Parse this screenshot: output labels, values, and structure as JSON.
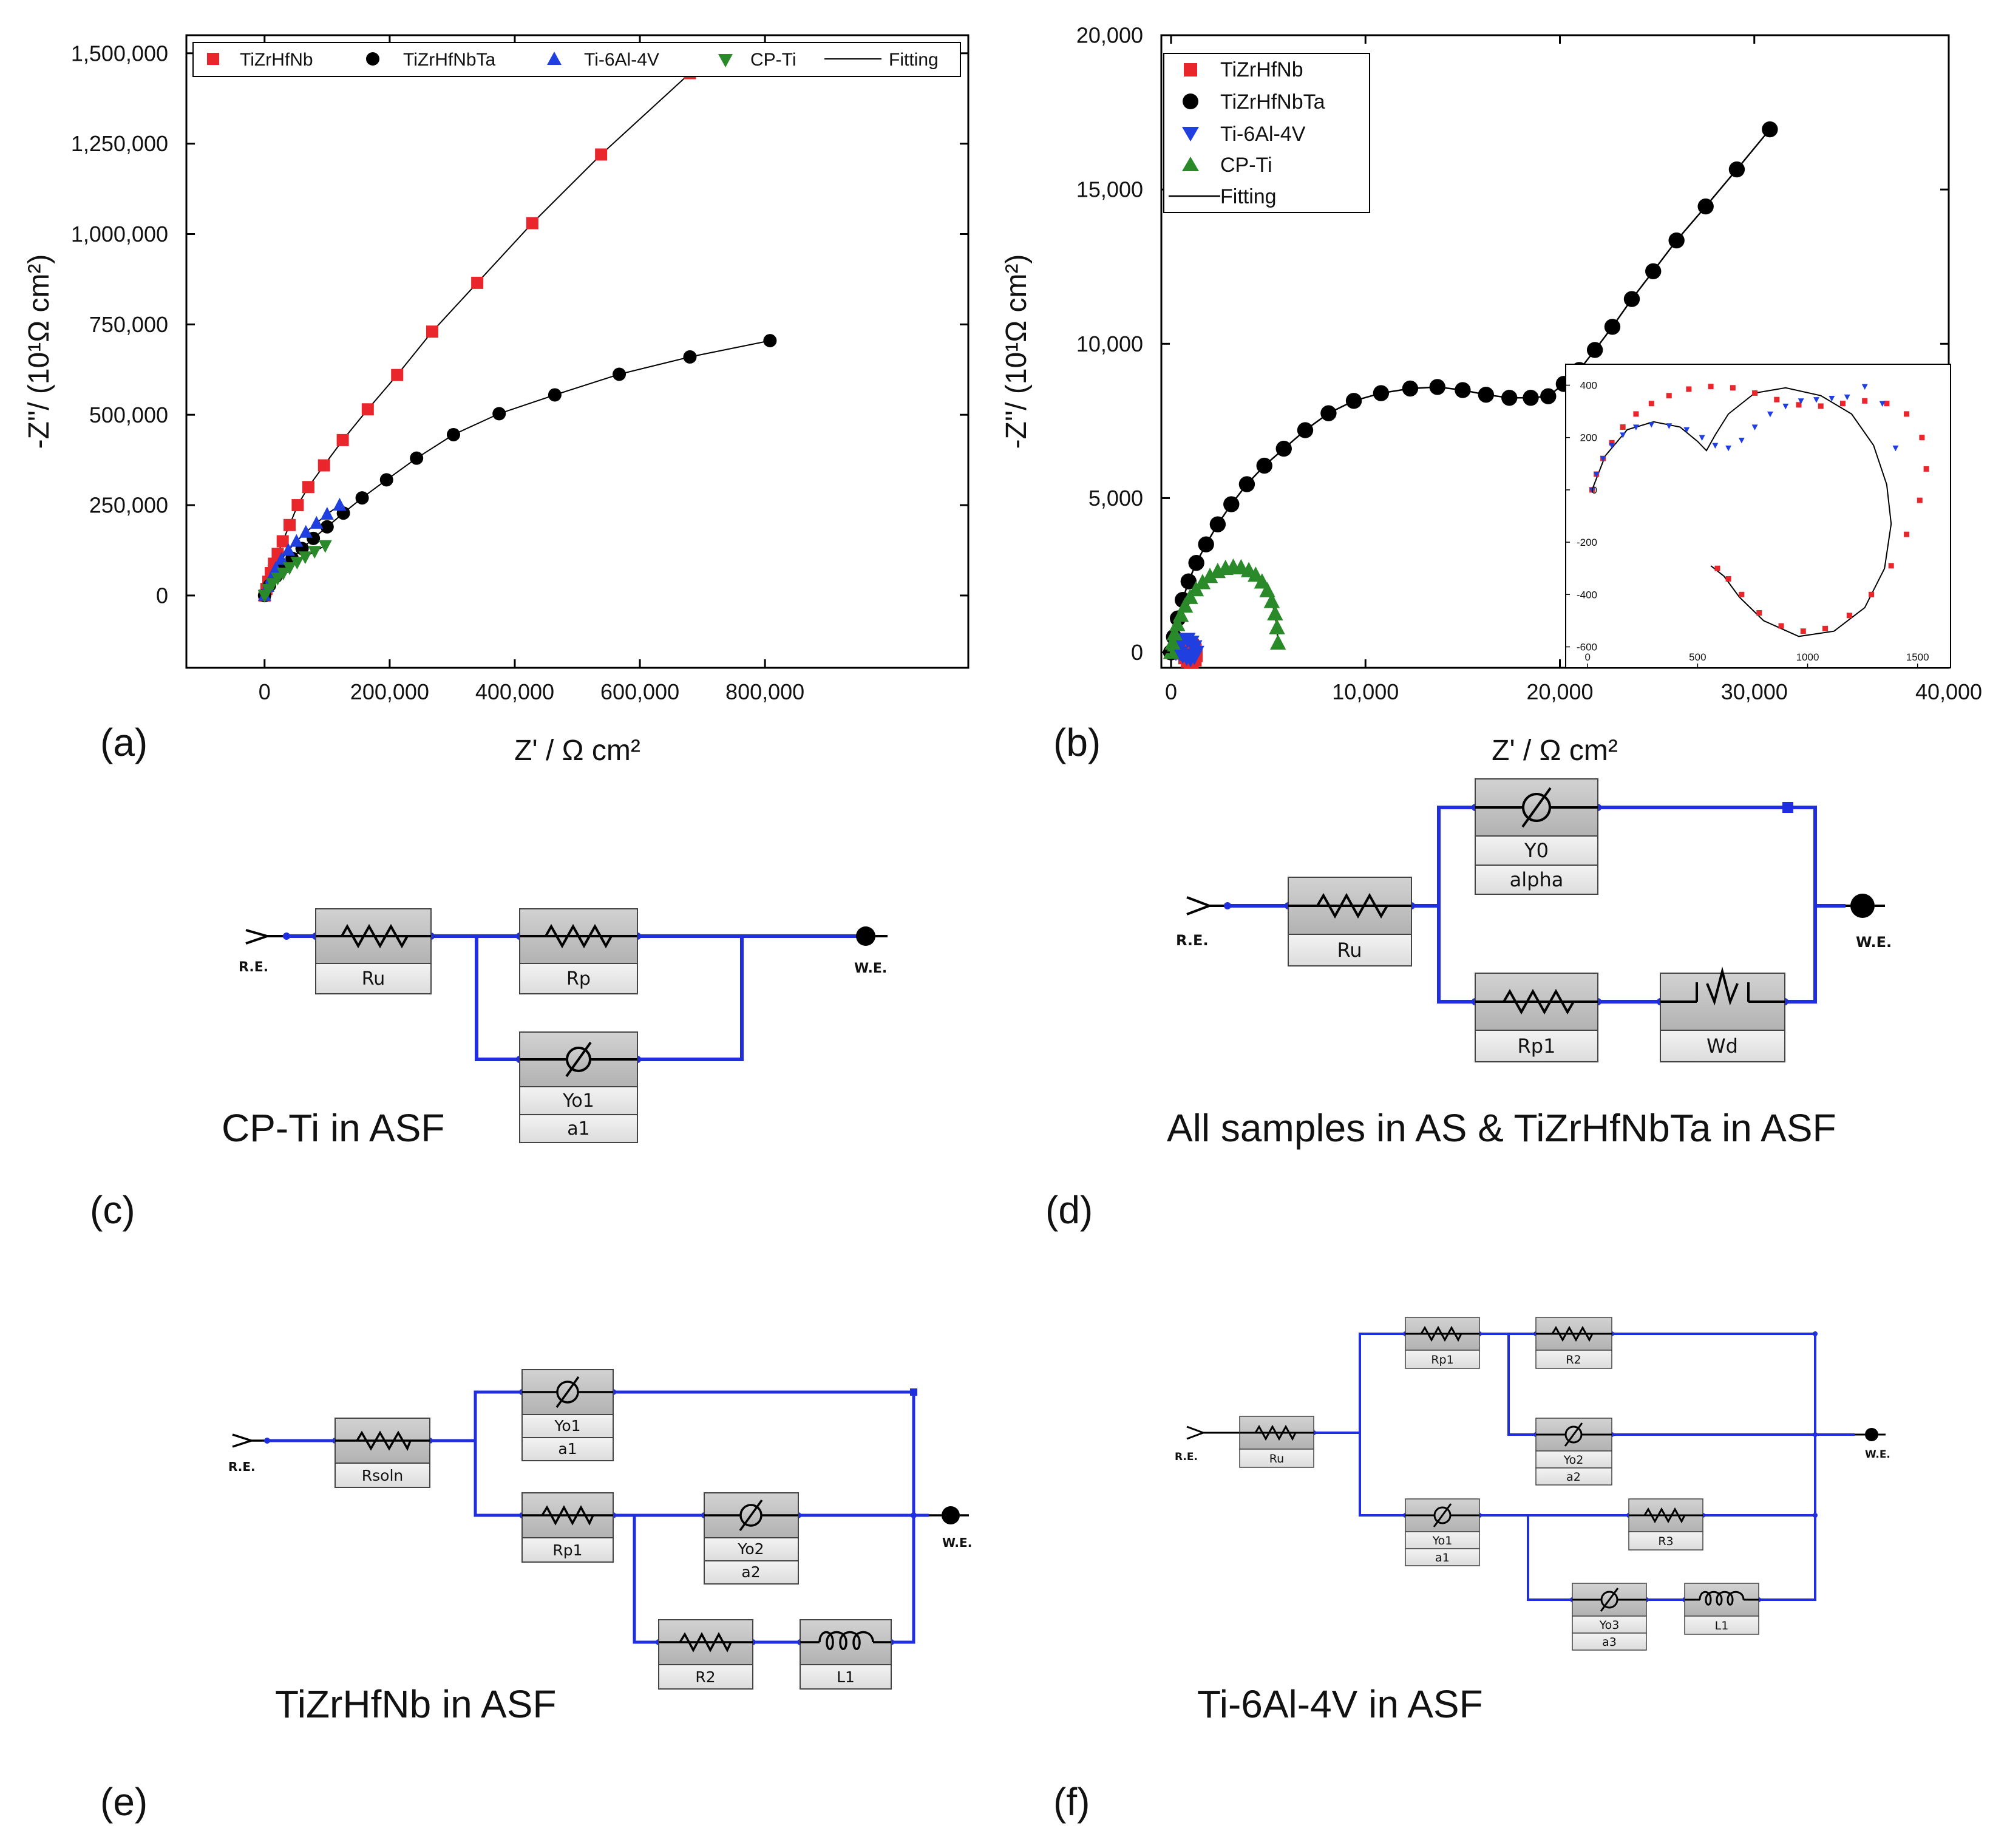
{
  "panel_labels": {
    "a": "(a)",
    "b": "(b)",
    "c": "(c)",
    "d": "(d)",
    "e": "(e)",
    "f": "(f)"
  },
  "chart_data": [
    {
      "type": "scatter",
      "panel": "(a)",
      "xlabel": "Z' / Ω cm²",
      "ylabel": "-Z''/ (10¹Ω cm²)",
      "xlim": [
        -125000,
        1125000
      ],
      "ylim": [
        -200000,
        1550000
      ],
      "xticks": [
        0,
        200000,
        400000,
        600000,
        800000
      ],
      "xtick_labels": [
        "0",
        "200,000",
        "400,000",
        "600,000",
        "800,000"
      ],
      "yticks": [
        0,
        250000,
        500000,
        750000,
        1000000,
        1250000,
        1500000
      ],
      "ytick_labels": [
        "0",
        "250,000",
        "500,000",
        "750,000",
        "1,000,000",
        "1,250,000",
        "1,500,000"
      ],
      "legend": [
        "TiZrHfNb",
        "TiZrHfNbTa",
        "Ti-6Al-4V",
        "CP-Ti",
        "Fitting"
      ],
      "legend_position": "top",
      "series": [
        {
          "name": "TiZrHfNb",
          "color": "#e8262b",
          "marker": "square",
          "x": [
            0,
            3000,
            6000,
            10000,
            15000,
            21000,
            29000,
            40000,
            53000,
            70000,
            95000,
            125000,
            165000,
            212000,
            268000,
            340000,
            428000,
            538000,
            680000
          ],
          "y": [
            0,
            18000,
            38000,
            62000,
            88000,
            115000,
            150000,
            195000,
            250000,
            300000,
            360000,
            430000,
            515000,
            610000,
            730000,
            865000,
            1030000,
            1220000,
            1445000
          ]
        },
        {
          "name": "TiZrHfNbTa",
          "color": "#000000",
          "marker": "circle",
          "x": [
            0,
            8000,
            18000,
            30000,
            44000,
            60000,
            78000,
            100000,
            126000,
            156000,
            195000,
            243000,
            302000,
            375000,
            464000,
            567000,
            680000,
            808000
          ],
          "y": [
            0,
            28000,
            52000,
            77000,
            103000,
            130000,
            158000,
            190000,
            228000,
            270000,
            320000,
            380000,
            445000,
            503000,
            555000,
            612000,
            660000,
            705000
          ]
        },
        {
          "name": "Ti-6Al-4V",
          "color": "#1f3fe0",
          "marker": "triangle-up",
          "x": [
            0,
            5000,
            11000,
            18000,
            27000,
            38000,
            51000,
            66000,
            83000,
            100000,
            120000
          ],
          "y": [
            0,
            25000,
            50000,
            75000,
            100000,
            125000,
            150000,
            175000,
            200000,
            225000,
            250000
          ]
        },
        {
          "name": "CP-Ti",
          "color": "#2a8a2a",
          "marker": "triangle-down",
          "x": [
            0,
            6000,
            13000,
            21000,
            30000,
            40000,
            52000,
            65000,
            80000,
            97000
          ],
          "y": [
            0,
            17000,
            33000,
            48000,
            62000,
            77000,
            92000,
            107000,
            122000,
            138000
          ]
        }
      ]
    },
    {
      "type": "scatter",
      "panel": "(b)",
      "xlabel": "Z' / Ω cm²",
      "ylabel": "-Z''/ (10¹Ω cm²)",
      "xlim": [
        -500,
        40000
      ],
      "ylim": [
        -500,
        20000
      ],
      "xticks": [
        0,
        10000,
        20000,
        30000,
        40000
      ],
      "xtick_labels": [
        "0",
        "10,000",
        "20,000",
        "30,000",
        "40,000"
      ],
      "yticks": [
        0,
        5000,
        10000,
        15000,
        20000
      ],
      "ytick_labels": [
        "0",
        "5,000",
        "10,000",
        "15,000",
        "20,000"
      ],
      "legend": [
        "TiZrHfNb",
        "TiZrHfNbTa",
        "Ti-6Al-4V",
        "CP-Ti",
        "Fitting"
      ],
      "legend_position": "top-left",
      "series": [
        {
          "name": "TiZrHfNb",
          "color": "#e8262b",
          "marker": "square",
          "x": [
            150,
            260,
            420,
            620,
            860,
            1060,
            1200,
            1250,
            1200,
            1050,
            880,
            750
          ],
          "y": [
            0,
            180,
            300,
            340,
            300,
            200,
            60,
            -80,
            -220,
            -300,
            -260,
            -150
          ]
        },
        {
          "name": "TiZrHfNbTa",
          "color": "#000000",
          "marker": "circle",
          "x": [
            0,
            150,
            350,
            600,
            900,
            1300,
            1800,
            2400,
            3100,
            3900,
            4800,
            5800,
            6900,
            8100,
            9400,
            10800,
            12300,
            13700,
            15000,
            16200,
            17400,
            18500,
            19400,
            20200,
            21000,
            21800,
            22700,
            23700,
            24800,
            26000,
            27500,
            29100,
            30800
          ],
          "y": [
            0,
            500,
            1100,
            1700,
            2300,
            2900,
            3500,
            4150,
            4800,
            5450,
            6050,
            6600,
            7200,
            7750,
            8150,
            8400,
            8550,
            8600,
            8500,
            8350,
            8250,
            8250,
            8300,
            8700,
            9150,
            9800,
            10550,
            11450,
            12350,
            13350,
            14450,
            15650,
            16950
          ]
        },
        {
          "name": "Ti-6Al-4V",
          "color": "#1f3fe0",
          "marker": "triangle-down",
          "x": [
            250,
            420,
            620,
            850,
            1050,
            1200,
            1300,
            1200,
            1000,
            800,
            600,
            450
          ],
          "y": [
            0,
            250,
            400,
            420,
            330,
            180,
            0,
            -130,
            -200,
            -160,
            -90,
            -20
          ]
        },
        {
          "name": "CP-Ti",
          "color": "#2a8a2a",
          "marker": "triangle-up",
          "x": [
            0,
            80,
            180,
            320,
            500,
            720,
            980,
            1280,
            1620,
            2000,
            2400,
            2800,
            3200,
            3600,
            4000,
            4350,
            4680,
            4950,
            5180,
            5350,
            5450,
            5500
          ],
          "y": [
            0,
            300,
            600,
            900,
            1200,
            1500,
            1780,
            2030,
            2260,
            2460,
            2620,
            2720,
            2760,
            2740,
            2650,
            2500,
            2280,
            2000,
            1650,
            1250,
            800,
            300
          ]
        }
      ],
      "inset": {
        "xlim": [
          -100,
          1650
        ],
        "ylim": [
          -680,
          480
        ],
        "xticks": [
          0,
          500,
          1000,
          1500
        ],
        "xtick_labels": [
          "0",
          "500",
          "1000",
          "1500"
        ],
        "yticks": [
          -600,
          -400,
          -200,
          0,
          200,
          400
        ],
        "ytick_labels": [
          "-600",
          "-400",
          "-200",
          "0",
          "200",
          "400"
        ],
        "series": [
          {
            "name": "TiZrHfNb",
            "color": "#e8262b",
            "marker": "square",
            "x": [
              20,
              40,
              70,
              110,
              160,
              220,
              290,
              370,
              460,
              560,
              660,
              760,
              860,
              960,
              1060,
              1160,
              1260,
              1360,
              1450,
              1520,
              1540,
              1510,
              1450,
              1380,
              1290,
              1190,
              1080,
              980,
              880,
              780,
              700,
              640,
              590
            ],
            "y": [
              0,
              60,
              120,
              180,
              240,
              290,
              330,
              360,
              385,
              395,
              390,
              370,
              345,
              325,
              320,
              330,
              340,
              330,
              290,
              200,
              80,
              -40,
              -170,
              -290,
              -400,
              -480,
              -530,
              -540,
              -520,
              -470,
              -400,
              -340,
              -300
            ]
          },
          {
            "name": "Ti-6Al-4V",
            "color": "#1f3fe0",
            "marker": "triangle-down",
            "x": [
              20,
              40,
              70,
              110,
              160,
              220,
              290,
              370,
              450,
              520,
              580,
              640,
              700,
              760,
              830,
              900,
              970,
              1040,
              1110,
              1180,
              1260,
              1340,
              1400
            ],
            "y": [
              0,
              60,
              120,
              170,
              210,
              240,
              250,
              245,
              230,
              200,
              170,
              160,
              190,
              240,
              290,
              320,
              340,
              345,
              350,
              355,
              395,
              330,
              160
            ]
          }
        ]
      }
    }
  ],
  "circuits": {
    "c": {
      "caption": "CP-Ti in ASF",
      "re": "R.E.",
      "we": "W.E.",
      "labels": {
        "ru": "Ru",
        "rp": "Rp",
        "cpe_y": "Yo1",
        "cpe_a": "a1"
      }
    },
    "d": {
      "caption": "All samples in AS & TiZrHfNbTa in ASF",
      "re": "R.E.",
      "we": "W.E.",
      "labels": {
        "ru": "Ru",
        "cpe_y": "Y0",
        "cpe_a": "alpha",
        "rp1": "Rp1",
        "wd": "Wd"
      }
    },
    "e": {
      "caption": "TiZrHfNb in ASF",
      "re": "R.E.",
      "we": "W.E.",
      "labels": {
        "rsoln": "Rsoln",
        "cpe1_y": "Yo1",
        "cpe1_a": "a1",
        "rp1": "Rp1",
        "cpe2_y": "Yo2",
        "cpe2_a": "a2",
        "r2": "R2",
        "l1": "L1"
      }
    },
    "f": {
      "caption": "Ti-6Al-4V in ASF",
      "re": "R.E.",
      "we": "W.E.",
      "labels": {
        "ru": "Ru",
        "rp1": "Rp1",
        "r2": "R2",
        "cpe2_y": "Yo2",
        "cpe2_a": "a2",
        "cpe1_y": "Yo1",
        "cpe1_a": "a1",
        "r3": "R3",
        "cpe3_y": "Yo3",
        "cpe3_a": "a3",
        "l1": "L1"
      }
    }
  }
}
